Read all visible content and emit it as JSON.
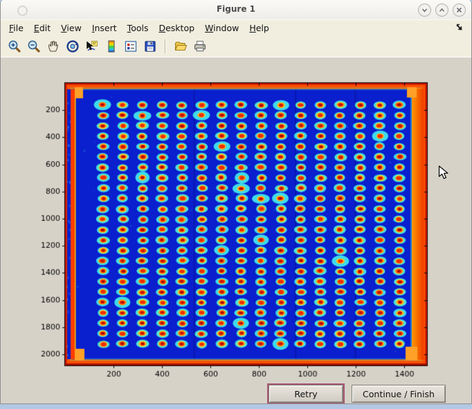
{
  "window": {
    "title": "Figure 1",
    "controls": [
      {
        "name": "minimize",
        "glyph": "chevron-down"
      },
      {
        "name": "maximize",
        "glyph": "chevron-up"
      },
      {
        "name": "close",
        "glyph": "x"
      }
    ]
  },
  "menu_bar": {
    "items": [
      {
        "label": "File"
      },
      {
        "label": "Edit"
      },
      {
        "label": "View"
      },
      {
        "label": "Insert"
      },
      {
        "label": "Tools"
      },
      {
        "label": "Desktop"
      },
      {
        "label": "Window"
      },
      {
        "label": "Help"
      }
    ],
    "dock_icon": "dock-figure-arrow"
  },
  "toolbar": {
    "icons": [
      "zoom-in",
      "zoom-out",
      "pan-hand",
      "rotate-3d",
      "data-cursor",
      "insert-colorbar",
      "insert-legend",
      "save",
      "open-folder",
      "print"
    ]
  },
  "dialog_buttons": {
    "retry": "Retry",
    "continue": "Continue / Finish"
  },
  "chart_data": {
    "type": "heatmap",
    "description": "Jet-colormap intensity scan of a 384-well microplate (24 rows x 16 columns of wells); hot red/orange plate rim on dark blue field, each well a red core with yellow ring and cyan halo",
    "title": "",
    "xlabel": "",
    "ylabel": "",
    "xlim": [
      0,
      1494
    ],
    "ylim": [
      0,
      2082
    ],
    "x_ticks": [
      200,
      400,
      600,
      800,
      1000,
      1200,
      1400
    ],
    "y_ticks": [
      200,
      400,
      600,
      800,
      1000,
      1200,
      1400,
      1600,
      1800,
      2000
    ],
    "grid": {
      "rows": 24,
      "cols": 16
    },
    "colormap": "jet",
    "legend": "none",
    "colors": {
      "field": "#0a1fce",
      "frame_outer": "#c41700",
      "frame_mid": "#ff5000",
      "frame_inner": "#ff9100",
      "band_red": "#ff3c00",
      "accent_yellow": "#ffc400",
      "halo_cyan": "#3ddcec",
      "halo_teal": "#4ce4da",
      "ring_yellow": "#ffc41c",
      "ring_orange": "#ffa418",
      "spot_red": "#ef2d00",
      "core_dark": "#a80800",
      "core_red": "#c01400",
      "tab_orange": "#ffa128",
      "tick_color": "#000000",
      "axis_border": "#000000"
    },
    "layout": {
      "wells_frac": {
        "x0": 0.105,
        "x1": 0.924,
        "y0": 0.078,
        "y1": 0.924
      },
      "stitch_fracs": [
        0.355,
        0.635,
        0.8
      ],
      "tick_len": 4,
      "font_px": 11
    }
  }
}
